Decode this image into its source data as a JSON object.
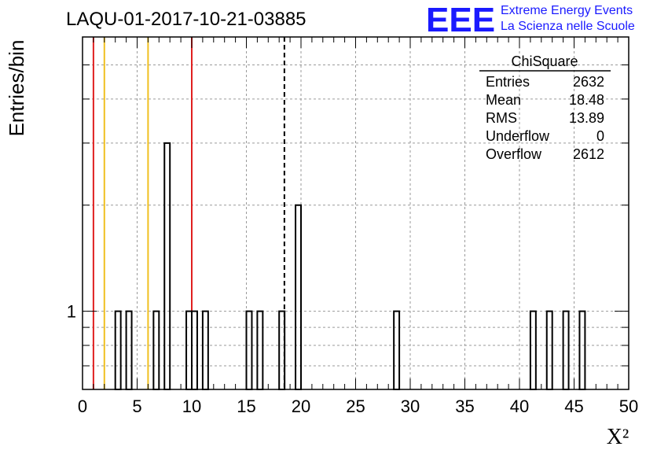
{
  "header": {
    "run_title": "LAQU-01-2017-10-21-03885",
    "logo_text": "EEE",
    "org_line1": "Extreme Energy Events",
    "org_line2": "La Scienza nelle Scuole"
  },
  "stats_box": {
    "title": "ChiSquare",
    "rows": [
      {
        "label": "Entries",
        "value": "2632"
      },
      {
        "label": "Mean",
        "value": "18.48"
      },
      {
        "label": "RMS",
        "value": "13.89"
      },
      {
        "label": "Underflow",
        "value": "0"
      },
      {
        "label": "Overflow",
        "value": "2612"
      }
    ]
  },
  "chart_data": {
    "type": "bar",
    "title": "LAQU-01-2017-10-21-03885",
    "xlabel": "X²",
    "ylabel": "Entries/bin",
    "xlim": [
      0,
      50
    ],
    "ylog": true,
    "bin_width": 0.5,
    "x_ticks": [
      "0",
      "5",
      "10",
      "15",
      "20",
      "25",
      "30",
      "35",
      "40",
      "45",
      "50"
    ],
    "y_ticks": [
      "1"
    ],
    "grid": true,
    "bins": [
      {
        "x": 3.0,
        "value": 1
      },
      {
        "x": 4.0,
        "value": 1
      },
      {
        "x": 6.5,
        "value": 1
      },
      {
        "x": 7.5,
        "value": 3
      },
      {
        "x": 9.5,
        "value": 1
      },
      {
        "x": 10.0,
        "value": 1
      },
      {
        "x": 11.0,
        "value": 1
      },
      {
        "x": 15.0,
        "value": 1
      },
      {
        "x": 16.0,
        "value": 1
      },
      {
        "x": 18.0,
        "value": 1
      },
      {
        "x": 19.5,
        "value": 2
      },
      {
        "x": 28.5,
        "value": 1
      },
      {
        "x": 41.0,
        "value": 1
      },
      {
        "x": 42.5,
        "value": 1
      },
      {
        "x": 44.0,
        "value": 1
      },
      {
        "x": 45.5,
        "value": 1
      }
    ],
    "reference_lines": [
      {
        "x": 1,
        "color": "#e02020",
        "style": "solid"
      },
      {
        "x": 2,
        "color": "#f0c020",
        "style": "solid"
      },
      {
        "x": 6,
        "color": "#f0c020",
        "style": "solid"
      },
      {
        "x": 10,
        "color": "#e02020",
        "style": "solid"
      },
      {
        "x": 18.48,
        "color": "#000000",
        "style": "dashed"
      }
    ]
  }
}
